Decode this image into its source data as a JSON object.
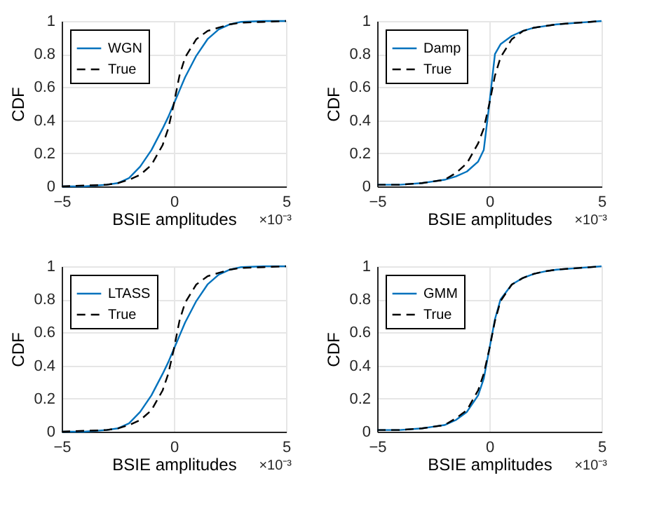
{
  "chart_data": [
    {
      "type": "line",
      "xlabel": "BSIE amplitudes",
      "ylabel": "CDF",
      "xlim": [
        -5,
        5
      ],
      "ylim": [
        0,
        1
      ],
      "xticks": [
        -5,
        0,
        5
      ],
      "yticks": [
        0,
        0.2,
        0.4,
        0.6,
        0.8,
        1
      ],
      "grid": true,
      "legend": "top left",
      "annotations": [
        "×10⁻³"
      ],
      "x": [
        -5,
        -4,
        -3,
        -2.5,
        -2,
        -1.5,
        -1,
        -0.5,
        -0.25,
        0,
        0.25,
        0.5,
        1,
        1.5,
        2,
        2.5,
        3,
        4,
        5
      ],
      "series": [
        {
          "name": "WGN",
          "color": "#0072bd",
          "line_style": "solid",
          "values": [
            0,
            0,
            0.01,
            0.02,
            0.05,
            0.12,
            0.22,
            0.35,
            0.42,
            0.5,
            0.58,
            0.66,
            0.79,
            0.89,
            0.95,
            0.98,
            0.995,
            1,
            1
          ]
        },
        {
          "name": "True",
          "color": "#000000",
          "line_style": "dashed",
          "values": [
            0,
            0.005,
            0.01,
            0.02,
            0.04,
            0.07,
            0.13,
            0.25,
            0.35,
            0.5,
            0.67,
            0.78,
            0.89,
            0.94,
            0.96,
            0.98,
            0.99,
            0.995,
            1
          ]
        }
      ]
    },
    {
      "type": "line",
      "xlabel": "BSIE amplitudes",
      "ylabel": "CDF",
      "xlim": [
        -5,
        5
      ],
      "ylim": [
        0,
        1
      ],
      "xticks": [
        -5,
        0,
        5
      ],
      "yticks": [
        0,
        0.2,
        0.4,
        0.6,
        0.8,
        1
      ],
      "grid": true,
      "legend": "top left",
      "annotations": [
        "×10⁻³"
      ],
      "x": [
        -5,
        -4,
        -3,
        -2.5,
        -2,
        -1.5,
        -1,
        -0.5,
        -0.25,
        0,
        0.25,
        0.5,
        1,
        1.5,
        2,
        2.5,
        3,
        4,
        5
      ],
      "series": [
        {
          "name": "Damp",
          "color": "#0072bd",
          "line_style": "solid",
          "values": [
            0.01,
            0.01,
            0.02,
            0.03,
            0.04,
            0.06,
            0.09,
            0.15,
            0.22,
            0.5,
            0.8,
            0.86,
            0.91,
            0.94,
            0.96,
            0.97,
            0.98,
            0.99,
            1
          ]
        },
        {
          "name": "True",
          "color": "#000000",
          "line_style": "dashed",
          "values": [
            0.01,
            0.01,
            0.02,
            0.03,
            0.04,
            0.08,
            0.14,
            0.26,
            0.35,
            0.5,
            0.67,
            0.78,
            0.89,
            0.94,
            0.96,
            0.97,
            0.98,
            0.99,
            1
          ]
        }
      ]
    },
    {
      "type": "line",
      "xlabel": "BSIE amplitudes",
      "ylabel": "CDF",
      "xlim": [
        -5,
        5
      ],
      "ylim": [
        0,
        1
      ],
      "xticks": [
        -5,
        0,
        5
      ],
      "yticks": [
        0,
        0.2,
        0.4,
        0.6,
        0.8,
        1
      ],
      "grid": true,
      "legend": "top left",
      "annotations": [
        "×10⁻³"
      ],
      "x": [
        -5,
        -4,
        -3,
        -2.5,
        -2,
        -1.5,
        -1,
        -0.5,
        -0.25,
        0,
        0.25,
        0.5,
        1,
        1.5,
        2,
        2.5,
        3,
        4,
        5
      ],
      "series": [
        {
          "name": "LTASS",
          "color": "#0072bd",
          "line_style": "solid",
          "values": [
            0,
            0,
            0.01,
            0.02,
            0.05,
            0.12,
            0.22,
            0.35,
            0.42,
            0.5,
            0.58,
            0.66,
            0.79,
            0.89,
            0.95,
            0.98,
            0.995,
            1,
            1
          ]
        },
        {
          "name": "True",
          "color": "#000000",
          "line_style": "dashed",
          "values": [
            0,
            0.005,
            0.01,
            0.02,
            0.04,
            0.07,
            0.13,
            0.25,
            0.35,
            0.5,
            0.67,
            0.78,
            0.89,
            0.94,
            0.96,
            0.98,
            0.99,
            0.995,
            1
          ]
        }
      ]
    },
    {
      "type": "line",
      "xlabel": "BSIE amplitudes",
      "ylabel": "CDF",
      "xlim": [
        -5,
        5
      ],
      "ylim": [
        0,
        1
      ],
      "xticks": [
        -5,
        0,
        5
      ],
      "yticks": [
        0,
        0.2,
        0.4,
        0.6,
        0.8,
        1
      ],
      "grid": true,
      "legend": "top left",
      "annotations": [
        "×10⁻³"
      ],
      "x": [
        -5,
        -4,
        -3,
        -2.5,
        -2,
        -1.5,
        -1,
        -0.5,
        -0.25,
        0,
        0.25,
        0.5,
        1,
        1.5,
        2,
        2.5,
        3,
        4,
        5
      ],
      "series": [
        {
          "name": "GMM",
          "color": "#0072bd",
          "line_style": "solid",
          "values": [
            0.01,
            0.01,
            0.02,
            0.03,
            0.04,
            0.07,
            0.12,
            0.22,
            0.32,
            0.5,
            0.68,
            0.8,
            0.89,
            0.93,
            0.955,
            0.97,
            0.98,
            0.99,
            1
          ]
        },
        {
          "name": "True",
          "color": "#000000",
          "line_style": "dashed",
          "values": [
            0.01,
            0.01,
            0.02,
            0.03,
            0.04,
            0.08,
            0.13,
            0.25,
            0.35,
            0.5,
            0.67,
            0.79,
            0.89,
            0.93,
            0.955,
            0.97,
            0.98,
            0.99,
            1
          ]
        }
      ]
    }
  ]
}
